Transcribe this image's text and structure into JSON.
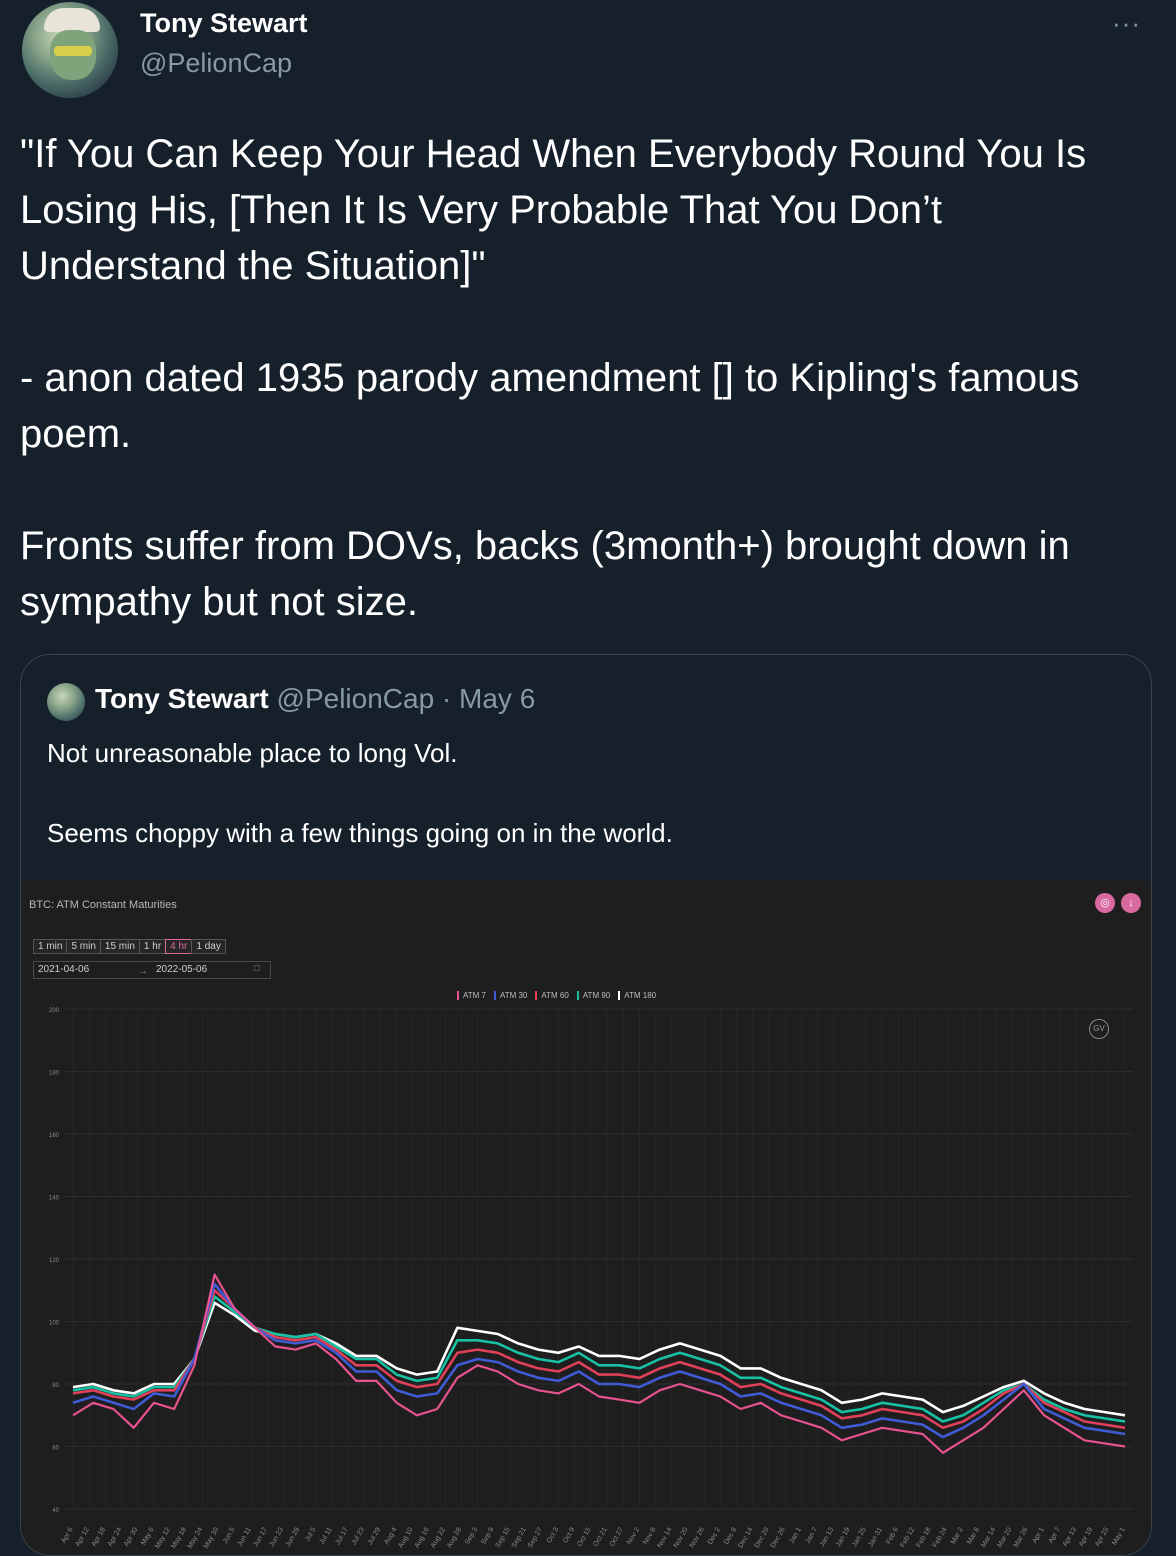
{
  "tweet": {
    "author_name": "Tony Stewart",
    "author_handle": "@PelionCap",
    "more_icon": "···",
    "text": {
      "line1": "\"If You Can Keep Your Head When Everybody Round You Is Losing His, [Then It Is Very Probable That You Don’t Understand the Situation]\"",
      "line2": "- anon dated 1935 parody amendment [] to Kipling's famous poem.",
      "line3": "Fronts suffer from DOVs, backs (3month+) brought down in sympathy but not size."
    }
  },
  "quoted": {
    "author_name": "Tony Stewart",
    "author_handle": "@PelionCap",
    "separator": "·",
    "date": "May 6",
    "text1": "Not unreasonable place to long Vol.",
    "text2": "Seems choppy with a few things going on in the world."
  },
  "chart_ui": {
    "timeframes": [
      "1 min",
      "5 min",
      "15 min",
      "1 hr",
      "4 hr",
      "1 day"
    ],
    "active_timeframe": "4 hr",
    "start_date": "2021-04-06",
    "end_date": "2022-05-06",
    "date_arrow": "→",
    "calendar_icon": "□",
    "camera_icon": "◎",
    "download_icon": "↓",
    "gv_label": "GV"
  },
  "chart_data": {
    "type": "line",
    "title": "BTC: ATM Constant Maturities",
    "ylim": [
      40,
      200
    ],
    "yticks": [
      40,
      60,
      80,
      100,
      120,
      140,
      160,
      180,
      200
    ],
    "xticks": [
      "Apr 6",
      "Apr 12",
      "Apr 18",
      "Apr 24",
      "Apr 30",
      "May 6",
      "May 12",
      "May 18",
      "May 24",
      "May 30",
      "Jun 5",
      "Jun 11",
      "Jun 17",
      "Jun 23",
      "Jun 29",
      "Jul 5",
      "Jul 11",
      "Jul 17",
      "Jul 23",
      "Jul 29",
      "Aug 4",
      "Aug 10",
      "Aug 16",
      "Aug 22",
      "Aug 28",
      "Sep 3",
      "Sep 9",
      "Sep 15",
      "Sep 21",
      "Sep 27",
      "Oct 3",
      "Oct 9",
      "Oct 15",
      "Oct 21",
      "Oct 27",
      "Nov 2",
      "Nov 8",
      "Nov 14",
      "Nov 20",
      "Nov 26",
      "Dec 2",
      "Dec 8",
      "Dec 14",
      "Dec 20",
      "Dec 26",
      "Jan 1",
      "Jan 7",
      "Jan 13",
      "Jan 19",
      "Jan 25",
      "Jan 31",
      "Feb 6",
      "Feb 12",
      "Feb 18",
      "Feb 24",
      "Mar 2",
      "Mar 8",
      "Mar 14",
      "Mar 20",
      "Mar 26",
      "Apr 1",
      "Apr 7",
      "Apr 13",
      "Apr 19",
      "Apr 25",
      "May 1"
    ],
    "grid": true,
    "legend_position": "top-center",
    "series": [
      {
        "name": "ATM 7",
        "color": "#e8538f",
        "values": [
          70,
          74,
          72,
          66,
          74,
          72,
          86,
          115,
          104,
          98,
          92,
          91,
          93,
          88,
          81,
          81,
          74,
          70,
          72,
          82,
          86,
          84,
          80,
          78,
          77,
          80,
          76,
          75,
          74,
          78,
          80,
          78,
          76,
          72,
          74,
          70,
          68,
          66,
          62,
          64,
          66,
          65,
          64,
          58,
          62,
          66,
          72,
          78,
          70,
          66,
          62,
          61,
          60
        ]
      },
      {
        "name": "ATM 30",
        "color": "#3f5bd6",
        "values": [
          74,
          76,
          74,
          72,
          77,
          76,
          88,
          112,
          104,
          98,
          94,
          93,
          94,
          90,
          84,
          84,
          78,
          76,
          77,
          86,
          88,
          87,
          84,
          82,
          81,
          84,
          80,
          80,
          79,
          82,
          84,
          82,
          80,
          76,
          77,
          74,
          72,
          70,
          66,
          67,
          69,
          68,
          67,
          63,
          66,
          70,
          75,
          80,
          72,
          69,
          66,
          65,
          64
        ]
      },
      {
        "name": "ATM 60",
        "color": "#e0405a",
        "values": [
          77,
          78,
          76,
          75,
          78,
          78,
          88,
          110,
          104,
          98,
          95,
          94,
          95,
          91,
          86,
          86,
          81,
          79,
          80,
          90,
          91,
          90,
          87,
          85,
          84,
          87,
          83,
          83,
          82,
          85,
          87,
          85,
          83,
          79,
          80,
          77,
          75,
          73,
          69,
          70,
          72,
          71,
          70,
          66,
          68,
          72,
          77,
          80,
          74,
          71,
          68,
          67,
          66
        ]
      },
      {
        "name": "ATM 90",
        "color": "#17c2a4",
        "values": [
          78,
          79,
          77,
          76,
          79,
          79,
          88,
          108,
          103,
          98,
          96,
          95,
          96,
          92,
          88,
          88,
          83,
          81,
          82,
          94,
          94,
          93,
          90,
          88,
          87,
          90,
          86,
          86,
          85,
          88,
          90,
          88,
          86,
          82,
          82,
          79,
          77,
          75,
          71,
          72,
          74,
          73,
          72,
          68,
          70,
          74,
          78,
          80,
          75,
          72,
          70,
          69,
          68
        ]
      },
      {
        "name": "ATM 180",
        "color": "#ffffff",
        "values": [
          79,
          80,
          78,
          77,
          80,
          80,
          88,
          106,
          102,
          97,
          96,
          95,
          96,
          93,
          89,
          89,
          85,
          83,
          84,
          98,
          97,
          96,
          93,
          91,
          90,
          92,
          89,
          89,
          88,
          91,
          93,
          91,
          89,
          85,
          85,
          82,
          80,
          78,
          74,
          75,
          77,
          76,
          75,
          71,
          73,
          76,
          79,
          81,
          77,
          74,
          72,
          71,
          70
        ]
      }
    ]
  }
}
